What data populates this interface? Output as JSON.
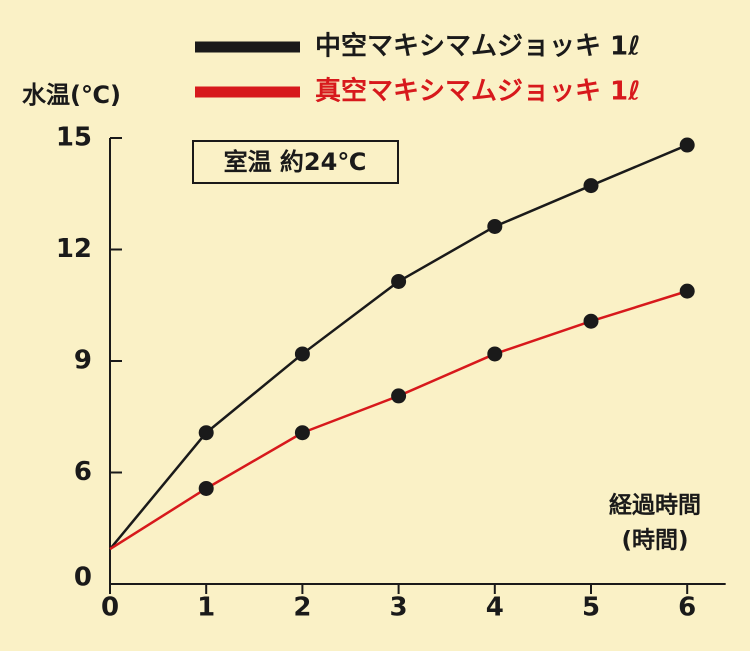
{
  "chart_data": {
    "type": "line",
    "y_label": "水温(℃)",
    "x_label": "経過時間",
    "x_unit": "(時間)",
    "annotation": "室温 約24℃",
    "x": [
      0,
      1,
      2,
      3,
      4,
      5,
      6
    ],
    "xlim": [
      0,
      6.4
    ],
    "xticks": [
      0,
      1,
      2,
      3,
      4,
      5,
      6
    ],
    "ylim": [
      3,
      15
    ],
    "yticks": [
      6,
      9,
      12,
      15
    ],
    "y_break_label": "0",
    "series": [
      {
        "name": "中空マキシマムジョッキ 1ℓ",
        "color": "#1a1a1a",
        "values": [
          3.94,
          7.07,
          9.19,
          11.14,
          12.62,
          13.72,
          14.81
        ]
      },
      {
        "name": "真空マキシマムジョッキ 1ℓ",
        "color": "#d7191c",
        "values": [
          3.94,
          5.57,
          7.07,
          8.06,
          9.19,
          10.07,
          10.88
        ]
      }
    ]
  }
}
